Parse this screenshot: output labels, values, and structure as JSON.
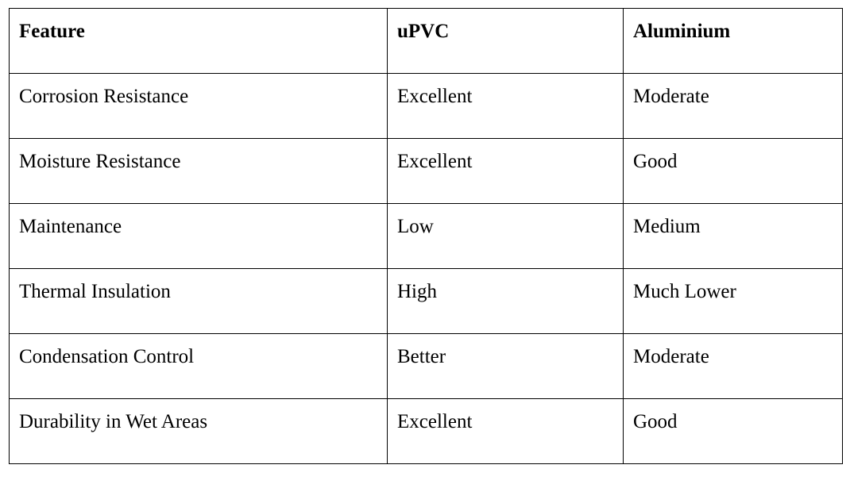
{
  "table": {
    "header": [
      "Feature",
      "uPVC",
      "Aluminium"
    ],
    "rows": [
      [
        "Corrosion Resistance",
        "Excellent",
        "Moderate"
      ],
      [
        "Moisture Resistance",
        "Excellent",
        "Good"
      ],
      [
        "Maintenance",
        "Low",
        "Medium"
      ],
      [
        "Thermal Insulation",
        "High",
        "Much Lower"
      ],
      [
        "Condensation Control",
        "Better",
        "Moderate"
      ],
      [
        "Durability in Wet Areas",
        "Excellent",
        "Good"
      ]
    ]
  }
}
